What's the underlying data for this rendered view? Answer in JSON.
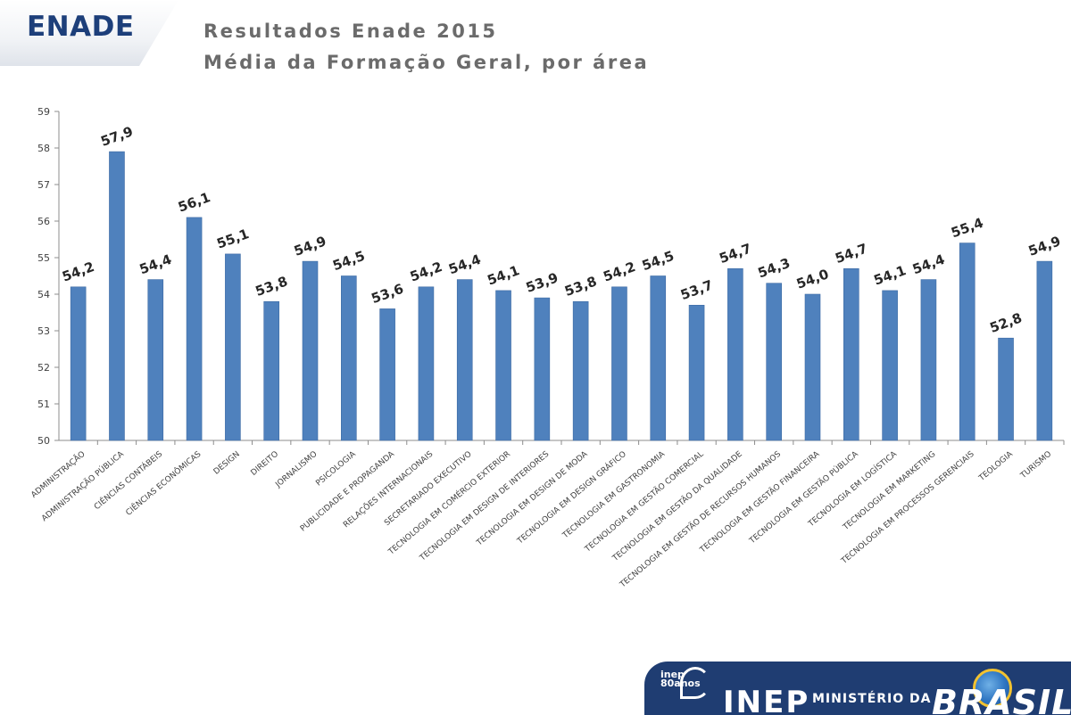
{
  "header": {
    "logo": "ENADE",
    "title_line1": "Resultados Enade 2015",
    "title_line2": "Média da Formação Geral, por área"
  },
  "footer": {
    "inep_mark": "inep 80anos",
    "inep_word": "INEP",
    "ministerio": "MINISTÉRIO DA",
    "brasil": "BRASIL"
  },
  "colors": {
    "bar": "#4f81bd",
    "bar_edge": "#3d6aa3",
    "axis": "#8c8c8c",
    "tick_text": "#404040",
    "label_text": "#262626",
    "logo": "#1d3f7a",
    "footer": "#1f3d72"
  },
  "chart_data": {
    "type": "bar",
    "ylim": [
      50,
      59
    ],
    "yticks": [
      50,
      51,
      52,
      53,
      54,
      55,
      56,
      57,
      58,
      59
    ],
    "grid": false,
    "legend": "none",
    "categories": [
      "ADMINISTRAÇÃO",
      "ADMINISTRAÇÃO PÚBLICA",
      "CIÊNCIAS CONTÁBEIS",
      "CIÊNCIAS ECONÔMICAS",
      "DESIGN",
      "DIREITO",
      "JORNALISMO",
      "PSICOLOGIA",
      "PUBLICIDADE E PROPAGANDA",
      "RELAÇÕES INTERNACIONAIS",
      "SECRETARIADO EXECUTIVO",
      "TECNOLOGIA EM COMÉRCIO EXTERIOR",
      "TECNOLOGIA EM DESIGN DE INTERIORES",
      "TECNOLOGIA EM DESIGN DE MODA",
      "TECNOLOGIA EM DESIGN GRÁFICO",
      "TECNOLOGIA EM GASTRONOMIA",
      "TECNOLOGIA EM GESTÃO COMERCIAL",
      "TECNOLOGIA EM GESTÃO DA QUALIDADE",
      "TECNOLOGIA EM GESTÃO DE RECURSOS HUMANOS",
      "TECNOLOGIA EM GESTÃO FINANCEIRA",
      "TECNOLOGIA EM GESTÃO PÚBLICA",
      "TECNOLOGIA EM LOGÍSTICA",
      "TECNOLOGIA EM MARKETING",
      "TECNOLOGIA EM PROCESSOS GERENCIAIS",
      "TEOLOGIA",
      "TURISMO"
    ],
    "values": [
      54.2,
      57.9,
      54.4,
      56.1,
      55.1,
      53.8,
      54.9,
      54.5,
      53.6,
      54.2,
      54.4,
      54.1,
      53.9,
      53.8,
      54.2,
      54.5,
      53.7,
      54.7,
      54.3,
      54.0,
      54.7,
      54.1,
      54.4,
      55.4,
      52.8,
      54.9
    ],
    "value_labels": [
      "54,2",
      "57,9",
      "54,4",
      "56,1",
      "55,1",
      "53,8",
      "54,9",
      "54,5",
      "53,6",
      "54,2",
      "54,4",
      "54,1",
      "53,9",
      "53,8",
      "54,2",
      "54,5",
      "53,7",
      "54,7",
      "54,3",
      "54,0",
      "54,7",
      "54,1",
      "54,4",
      "55,4",
      "52,8",
      "54,9"
    ]
  }
}
